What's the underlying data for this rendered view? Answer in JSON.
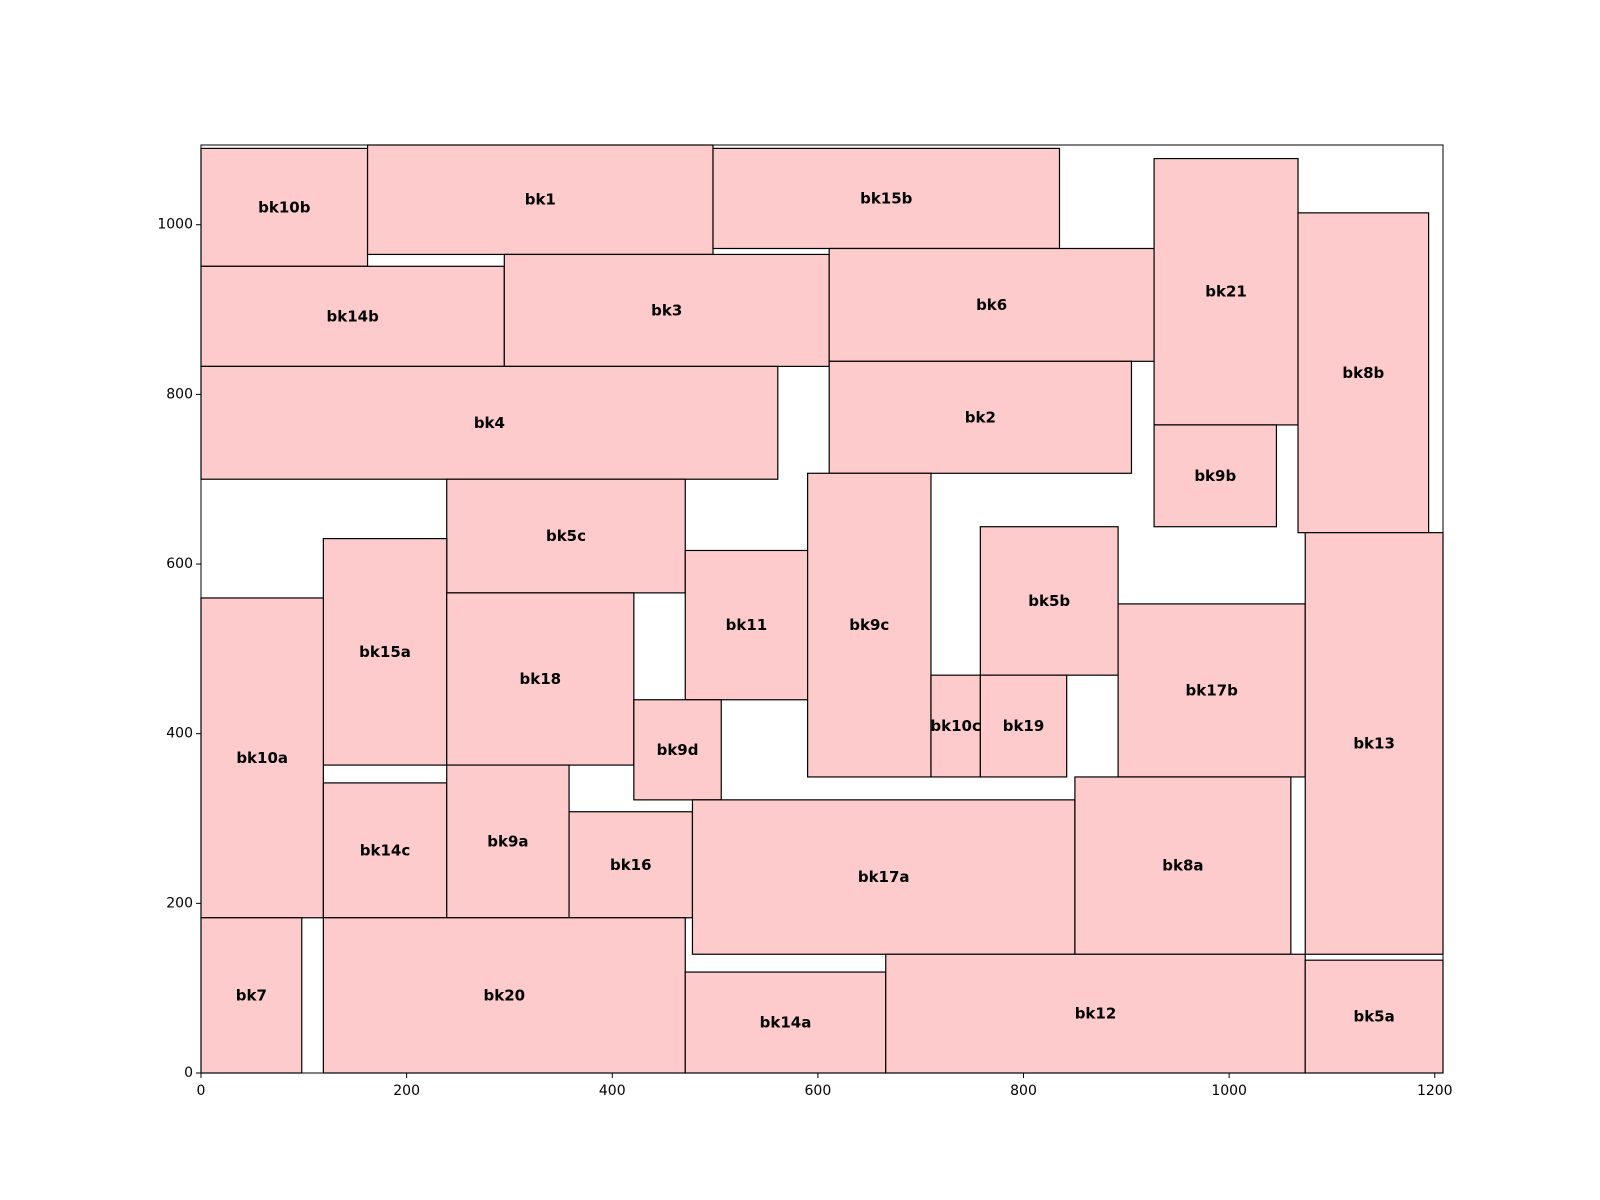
{
  "chart_data": {
    "type": "floorplan",
    "xlim": [
      0,
      1208
    ],
    "ylim": [
      0,
      1094
    ],
    "xticks": [
      "0",
      "200",
      "400",
      "600",
      "800",
      "1000",
      "1200"
    ],
    "yticks": [
      "0",
      "200",
      "400",
      "600",
      "800",
      "1000"
    ],
    "colors": {
      "block_fill": "#fdcbcb",
      "block_edge": "#000000"
    },
    "blocks": [
      {
        "name": "bk10b",
        "x": 0,
        "y": 951,
        "w": 162,
        "h": 139
      },
      {
        "name": "bk1",
        "x": 162,
        "y": 965,
        "w": 336,
        "h": 129
      },
      {
        "name": "bk15b",
        "x": 498,
        "y": 972,
        "w": 337,
        "h": 118
      },
      {
        "name": "bk14b",
        "x": 0,
        "y": 833,
        "w": 295,
        "h": 118
      },
      {
        "name": "bk3",
        "x": 295,
        "y": 833,
        "w": 316,
        "h": 132
      },
      {
        "name": "bk6",
        "x": 611,
        "y": 839,
        "w": 316,
        "h": 133
      },
      {
        "name": "bk21",
        "x": 927,
        "y": 764,
        "w": 140,
        "h": 314
      },
      {
        "name": "bk8b",
        "x": 1067,
        "y": 637,
        "w": 127,
        "h": 377
      },
      {
        "name": "bk4",
        "x": 0,
        "y": 700,
        "w": 561,
        "h": 133
      },
      {
        "name": "bk2",
        "x": 611,
        "y": 707,
        "w": 294,
        "h": 132
      },
      {
        "name": "bk9b",
        "x": 927,
        "y": 644,
        "w": 119,
        "h": 120
      },
      {
        "name": "bk5c",
        "x": 239,
        "y": 566,
        "w": 232,
        "h": 134
      },
      {
        "name": "bk15a",
        "x": 119,
        "y": 363,
        "w": 120,
        "h": 267
      },
      {
        "name": "bk10a",
        "x": 0,
        "y": 183,
        "w": 119,
        "h": 377
      },
      {
        "name": "bk18",
        "x": 239,
        "y": 363,
        "w": 182,
        "h": 203
      },
      {
        "name": "bk11",
        "x": 471,
        "y": 440,
        "w": 119,
        "h": 176
      },
      {
        "name": "bk9c",
        "x": 590,
        "y": 349,
        "w": 120,
        "h": 358
      },
      {
        "name": "bk5b",
        "x": 758,
        "y": 469,
        "w": 134,
        "h": 175
      },
      {
        "name": "bk10c",
        "x": 710,
        "y": 349,
        "w": 48,
        "h": 120
      },
      {
        "name": "bk19",
        "x": 758,
        "y": 349,
        "w": 84,
        "h": 120
      },
      {
        "name": "bk17b",
        "x": 892,
        "y": 349,
        "w": 182,
        "h": 204
      },
      {
        "name": "bk13",
        "x": 1074,
        "y": 140,
        "w": 134,
        "h": 497
      },
      {
        "name": "bk9d",
        "x": 421,
        "y": 322,
        "w": 85,
        "h": 118
      },
      {
        "name": "bk14c",
        "x": 119,
        "y": 183,
        "w": 120,
        "h": 159
      },
      {
        "name": "bk9a",
        "x": 239,
        "y": 183,
        "w": 119,
        "h": 180
      },
      {
        "name": "bk16",
        "x": 358,
        "y": 183,
        "w": 120,
        "h": 125
      },
      {
        "name": "bk17a",
        "x": 478,
        "y": 140,
        "w": 372,
        "h": 182
      },
      {
        "name": "bk8a",
        "x": 850,
        "y": 140,
        "w": 210,
        "h": 209
      },
      {
        "name": "bk7",
        "x": 0,
        "y": 0,
        "w": 98,
        "h": 183
      },
      {
        "name": "bk20",
        "x": 119,
        "y": 0,
        "w": 352,
        "h": 183
      },
      {
        "name": "bk14a",
        "x": 471,
        "y": 0,
        "w": 195,
        "h": 119
      },
      {
        "name": "bk12",
        "x": 666,
        "y": 0,
        "w": 408,
        "h": 140
      },
      {
        "name": "bk5a",
        "x": 1074,
        "y": 0,
        "w": 134,
        "h": 133
      }
    ]
  }
}
